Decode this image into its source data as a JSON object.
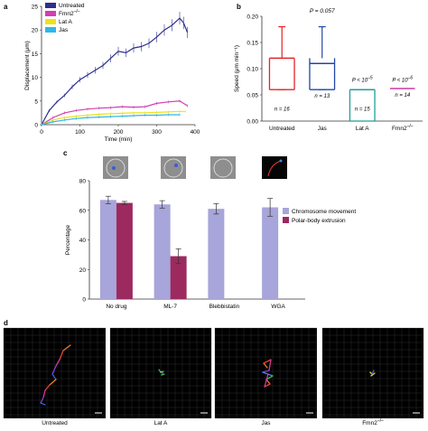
{
  "colors": {
    "untreated": "#2e2f8c",
    "fmn2": "#d23fb0",
    "latA": "#ece21b",
    "jas": "#2fb6e8",
    "speed_untreated": "#e32428",
    "speed_jas": "#2146a6",
    "speed_latA": "#1f9e96",
    "speed_fmn2": "#cc3aa2",
    "chrom": "#a7a5d9",
    "polar": "#9c2a5f",
    "grid": "#4b4b4b"
  },
  "chart_data": [
    {
      "panel": "a",
      "type": "line",
      "xlabel": "Time (min)",
      "ylabel": "Displacement (μm)",
      "xlim": [
        0,
        400
      ],
      "ylim": [
        0,
        25
      ],
      "xticks": [
        0,
        100,
        200,
        300,
        400
      ],
      "yticks": [
        0,
        5,
        10,
        15,
        20,
        25
      ],
      "legend": "top-left",
      "series": [
        {
          "name": "Untreated",
          "key": "untreated",
          "x": [
            0,
            20,
            40,
            60,
            80,
            100,
            120,
            140,
            160,
            180,
            200,
            220,
            240,
            260,
            280,
            300,
            320,
            340,
            360,
            370,
            380
          ],
          "y": [
            0,
            3,
            4.8,
            6.2,
            8,
            9.5,
            10.5,
            11.5,
            12.5,
            14,
            15.5,
            15.2,
            16.2,
            16.5,
            17.2,
            18.5,
            20,
            21,
            22.5,
            21.5,
            19.5
          ]
        },
        {
          "name": "Fmn2",
          "sup": "–/–",
          "key": "fmn2",
          "x": [
            0,
            30,
            60,
            90,
            120,
            150,
            180,
            210,
            240,
            270,
            300,
            330,
            360,
            380
          ],
          "y": [
            0,
            1.5,
            2.5,
            3,
            3.3,
            3.5,
            3.6,
            3.8,
            3.7,
            3.8,
            4.5,
            4.8,
            5,
            4
          ]
        },
        {
          "name": "Lat A",
          "key": "latA",
          "x": [
            0,
            30,
            60,
            90,
            120,
            150,
            180,
            210,
            240,
            270,
            300,
            330,
            360,
            375
          ],
          "y": [
            0,
            1,
            1.5,
            1.8,
            2,
            2.2,
            2.3,
            2.4,
            2.5,
            2.5,
            2.6,
            2.7,
            2.8,
            2.8
          ]
        },
        {
          "name": "Jas",
          "key": "jas",
          "x": [
            0,
            30,
            60,
            90,
            120,
            150,
            180,
            210,
            240,
            270,
            300,
            330,
            360
          ],
          "y": [
            0,
            0.6,
            1,
            1.3,
            1.5,
            1.6,
            1.7,
            1.8,
            1.9,
            2,
            2,
            2.1,
            2.1
          ]
        }
      ]
    },
    {
      "panel": "b",
      "type": "box",
      "ylabel": "Speed (μm min⁻¹)",
      "ylim": [
        0,
        0.2
      ],
      "yticks": [
        "0.00",
        "0.05",
        "0.10",
        "0.15",
        "0.20"
      ],
      "categories": [
        {
          "label": "Untreated",
          "key": "speed_untreated",
          "median": 0.12,
          "q1": 0.06,
          "q3": 0.12,
          "wlo": 0.06,
          "whi": 0.18,
          "n": "n = 16",
          "p": "",
          "psup": ""
        },
        {
          "label": "Jas",
          "key": "speed_jas",
          "median": 0.11,
          "q1": 0.06,
          "q3": 0.12,
          "wlo": 0.06,
          "whi": 0.18,
          "n": "n = 13",
          "p": "",
          "psup": ""
        },
        {
          "label": "Lat A",
          "key": "speed_latA",
          "median": 0.06,
          "q1": 0.0,
          "q3": 0.06,
          "wlo": 0.0,
          "whi": 0.06,
          "n": "n = 15",
          "p": "P < 10",
          "psup": "–5"
        },
        {
          "label": "Fmn2",
          "sup": "–/–",
          "key": "speed_fmn2",
          "median": 0.062,
          "q1": 0.062,
          "q3": 0.062,
          "wlo": 0.062,
          "whi": 0.062,
          "n": "n = 14",
          "p": "P < 10",
          "psup": "–6"
        }
      ],
      "annotation": "P = 0.057"
    },
    {
      "panel": "c",
      "type": "bar",
      "ylabel": "Percentage",
      "ylim": [
        0,
        80
      ],
      "yticks": [
        0,
        20,
        40,
        60,
        80
      ],
      "legend": "top-right",
      "categories": [
        "No drug",
        "ML-7",
        "Blebbistatin",
        "WGA"
      ],
      "series": [
        {
          "name": "Chromosome movement",
          "key": "chrom",
          "values": [
            67,
            64,
            61,
            62
          ],
          "err": [
            2.5,
            2.5,
            3.5,
            6
          ]
        },
        {
          "name": "Polar-body extrusion",
          "key": "polar",
          "values": [
            65,
            29,
            null,
            null
          ],
          "err": [
            1,
            5,
            null,
            null
          ]
        }
      ]
    }
  ],
  "panel_d": {
    "label": "d",
    "tracks": [
      {
        "label": "Untreated",
        "sup": ""
      },
      {
        "label": "Lat A",
        "sup": ""
      },
      {
        "label": "Jas",
        "sup": ""
      },
      {
        "label": "Fmn2",
        "sup": "–/–"
      }
    ]
  },
  "panel_labels": {
    "a": "a",
    "b": "b",
    "c": "c",
    "d": "d"
  }
}
